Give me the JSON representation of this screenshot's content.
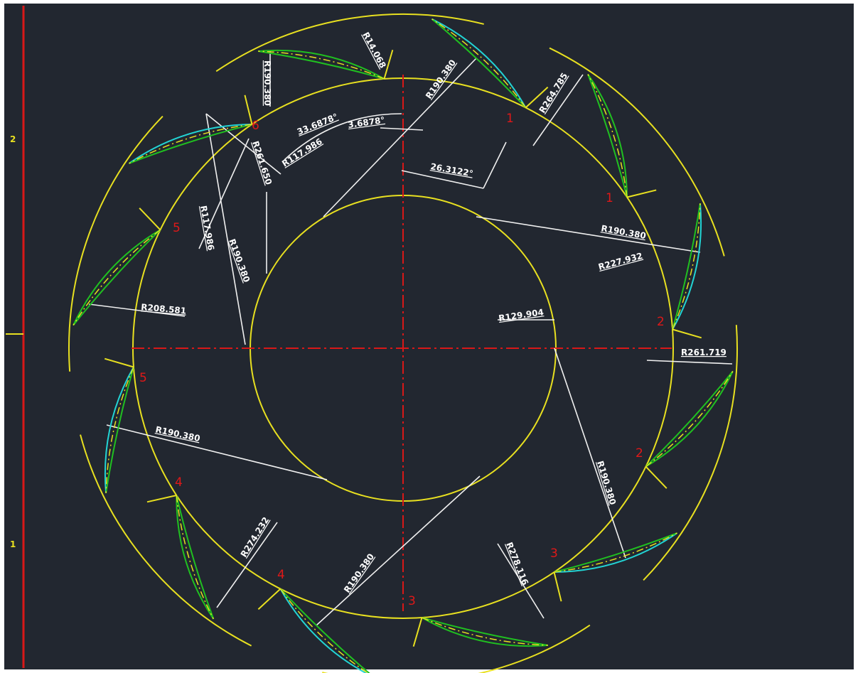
{
  "ruler_labels": [
    "2",
    "1"
  ],
  "dimensions": [
    "R14.068",
    "R190.380",
    "R264.785",
    "R190.380",
    "33.6878°",
    "3.6878°",
    "R117.986",
    "R261.650",
    "26.3122°",
    "R117.986",
    "R190.380",
    "R190.380",
    "R227.932",
    "R129.904",
    "R208.581",
    "R261.719",
    "R190.380",
    "R190.380",
    "R278.116",
    "R274.232",
    "R190.380"
  ],
  "blade_numbers": [
    "1",
    "1",
    "2",
    "2",
    "3",
    "3",
    "4",
    "4",
    "5",
    "5",
    "6"
  ]
}
